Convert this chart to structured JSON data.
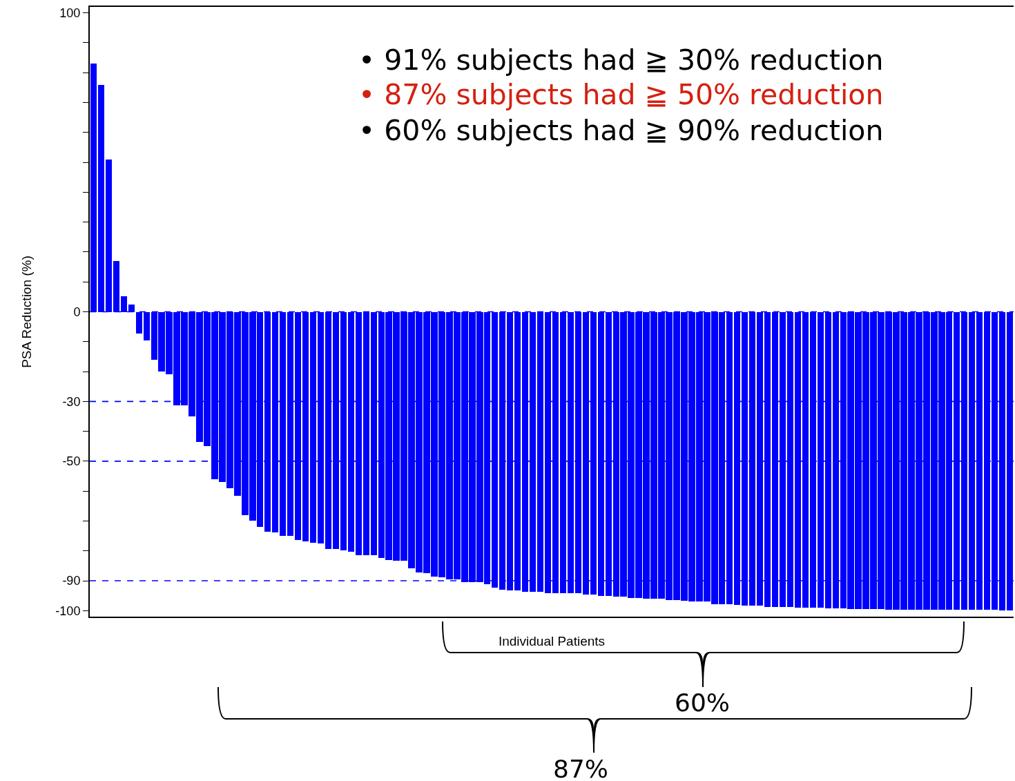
{
  "chart_data": {
    "type": "bar",
    "ylabel": "PSA Reduction (%)",
    "xlabel": "Individual Patients",
    "categories": [
      null,
      null,
      null,
      null,
      null,
      null,
      null,
      null,
      null,
      null,
      null,
      null,
      null,
      null,
      null,
      null,
      null,
      null,
      null,
      null,
      null,
      null,
      null,
      null,
      null,
      null,
      null,
      null,
      null,
      null,
      null,
      null,
      null,
      null,
      null,
      null,
      null,
      null,
      null,
      null,
      null,
      null,
      null,
      null,
      null,
      null,
      null,
      null,
      null,
      null,
      null,
      null,
      null,
      null,
      null,
      null,
      null,
      null,
      null,
      null,
      null,
      null,
      null,
      null,
      null,
      null,
      null,
      null,
      null,
      null,
      null,
      null,
      null,
      null,
      null,
      null,
      null,
      null,
      null,
      null,
      null,
      null,
      null,
      null,
      null,
      null,
      null,
      null,
      null,
      null,
      null,
      null,
      null,
      null,
      null,
      null,
      null,
      null,
      null,
      null,
      null,
      null,
      null,
      null,
      null,
      null,
      null,
      null,
      null,
      null,
      null,
      null,
      null,
      null,
      null,
      null,
      null,
      null,
      null,
      null,
      null,
      null
    ],
    "values": [
      83,
      76,
      51,
      17,
      5.3,
      2.5,
      -7.2,
      -9.7,
      -16,
      -20,
      -21,
      -31.4,
      -31.4,
      -35,
      -43.6,
      -45,
      -56,
      -57,
      -59,
      -61.5,
      -68,
      -70,
      -72,
      -73.5,
      -73.7,
      -75,
      -75,
      -76.4,
      -76.8,
      -77.2,
      -77.4,
      -79.4,
      -79.4,
      -79.8,
      -80.2,
      -81.5,
      -81.5,
      -81.5,
      -82.3,
      -83,
      -83.4,
      -83.4,
      -85.9,
      -87.1,
      -87.5,
      -88.5,
      -88.8,
      -89.6,
      -89.6,
      -90.4,
      -90.4,
      -90.4,
      -91.1,
      -92.4,
      -92.9,
      -93.3,
      -93.3,
      -93.7,
      -93.7,
      -93.7,
      -94.1,
      -94.1,
      -94.1,
      -94.1,
      -94.1,
      -94.5,
      -94.6,
      -95,
      -95,
      -95.4,
      -95.4,
      -95.8,
      -95.8,
      -96.1,
      -96.1,
      -96.1,
      -96.5,
      -96.5,
      -96.7,
      -97,
      -97,
      -97,
      -97.8,
      -97.8,
      -97.8,
      -98.1,
      -98.2,
      -98.2,
      -98.2,
      -98.7,
      -98.7,
      -98.7,
      -98.7,
      -99,
      -99,
      -99,
      -99,
      -99.2,
      -99.2,
      -99.2,
      -99.5,
      -99.5,
      -99.5,
      -99.5,
      -99.5,
      -99.6,
      -99.8,
      -99.8,
      -99.8,
      -99.8,
      -99.8,
      -99.8,
      -99.8,
      -99.8,
      -99.8,
      -99.8,
      -99.8,
      -99.8,
      -99.8,
      -99.8,
      -100,
      -100
    ],
    "color": "#0000ff",
    "ylim": [
      -102,
      102
    ],
    "yticks": [
      100,
      {
        "value": 90,
        "label": null
      },
      {
        "value": 80,
        "label": null
      },
      {
        "value": 70,
        "label": null
      },
      {
        "value": 60,
        "label": null
      },
      {
        "value": 50,
        "label": null
      },
      {
        "value": 40,
        "label": null
      },
      {
        "value": 30,
        "label": null
      },
      {
        "value": 20,
        "label": null
      },
      {
        "value": 10,
        "label": null
      },
      0,
      {
        "value": -10,
        "label": null
      },
      {
        "value": -20,
        "label": null
      },
      -30,
      {
        "value": -40,
        "label": null
      },
      -50,
      {
        "value": -60,
        "label": null
      },
      {
        "value": -70,
        "label": null
      },
      {
        "value": -80,
        "label": null
      },
      -90,
      -100
    ],
    "ref_lines": [
      {
        "axis": "y",
        "value": 0,
        "color": "#0000ff",
        "line_style": "dashed"
      },
      {
        "axis": "y",
        "value": -30,
        "color": "#0000ff",
        "line_style": "dashed"
      },
      {
        "axis": "y",
        "value": -50,
        "color": "#0000ff",
        "line_style": "dashed"
      },
      {
        "axis": "y",
        "value": -90,
        "color": "#0000ff",
        "line_style": "dashed"
      }
    ],
    "annotations": [
      "• 91% subjects had ≧ 30% reduction",
      "• 87% subjects had ≧ 50% reduction",
      "• 60% subjects had ≧ 90% reduction",
      "60%",
      "87%"
    ],
    "tick_labels": "y",
    "grid": false,
    "legend": false
  }
}
